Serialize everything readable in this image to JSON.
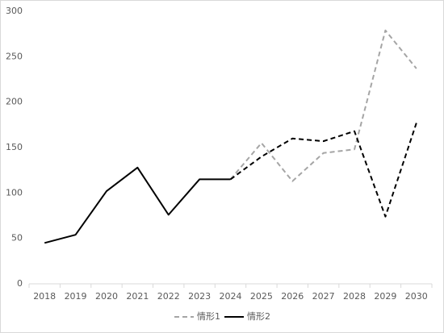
{
  "chart_data": {
    "type": "line",
    "categories": [
      "2018",
      "2019",
      "2020",
      "2021",
      "2022",
      "2023",
      "2024",
      "2025",
      "2026",
      "2027",
      "2028",
      "2029",
      "2030"
    ],
    "series": [
      {
        "name": "情形1",
        "color": "#a5a5a5",
        "dash": true,
        "values": [
          null,
          null,
          null,
          null,
          null,
          null,
          115,
          155,
          113,
          144,
          148,
          279,
          237
        ]
      },
      {
        "name": "情形2",
        "color": "#000000",
        "dash": false,
        "dash_from": "2024",
        "values": [
          45,
          54,
          102,
          128,
          76,
          115,
          115,
          140,
          160,
          157,
          168,
          74,
          177
        ]
      }
    ],
    "ylim": [
      0,
      300
    ],
    "yticks": [
      0,
      50,
      100,
      150,
      200,
      250,
      300
    ],
    "grid": false,
    "legend": "bottom"
  }
}
